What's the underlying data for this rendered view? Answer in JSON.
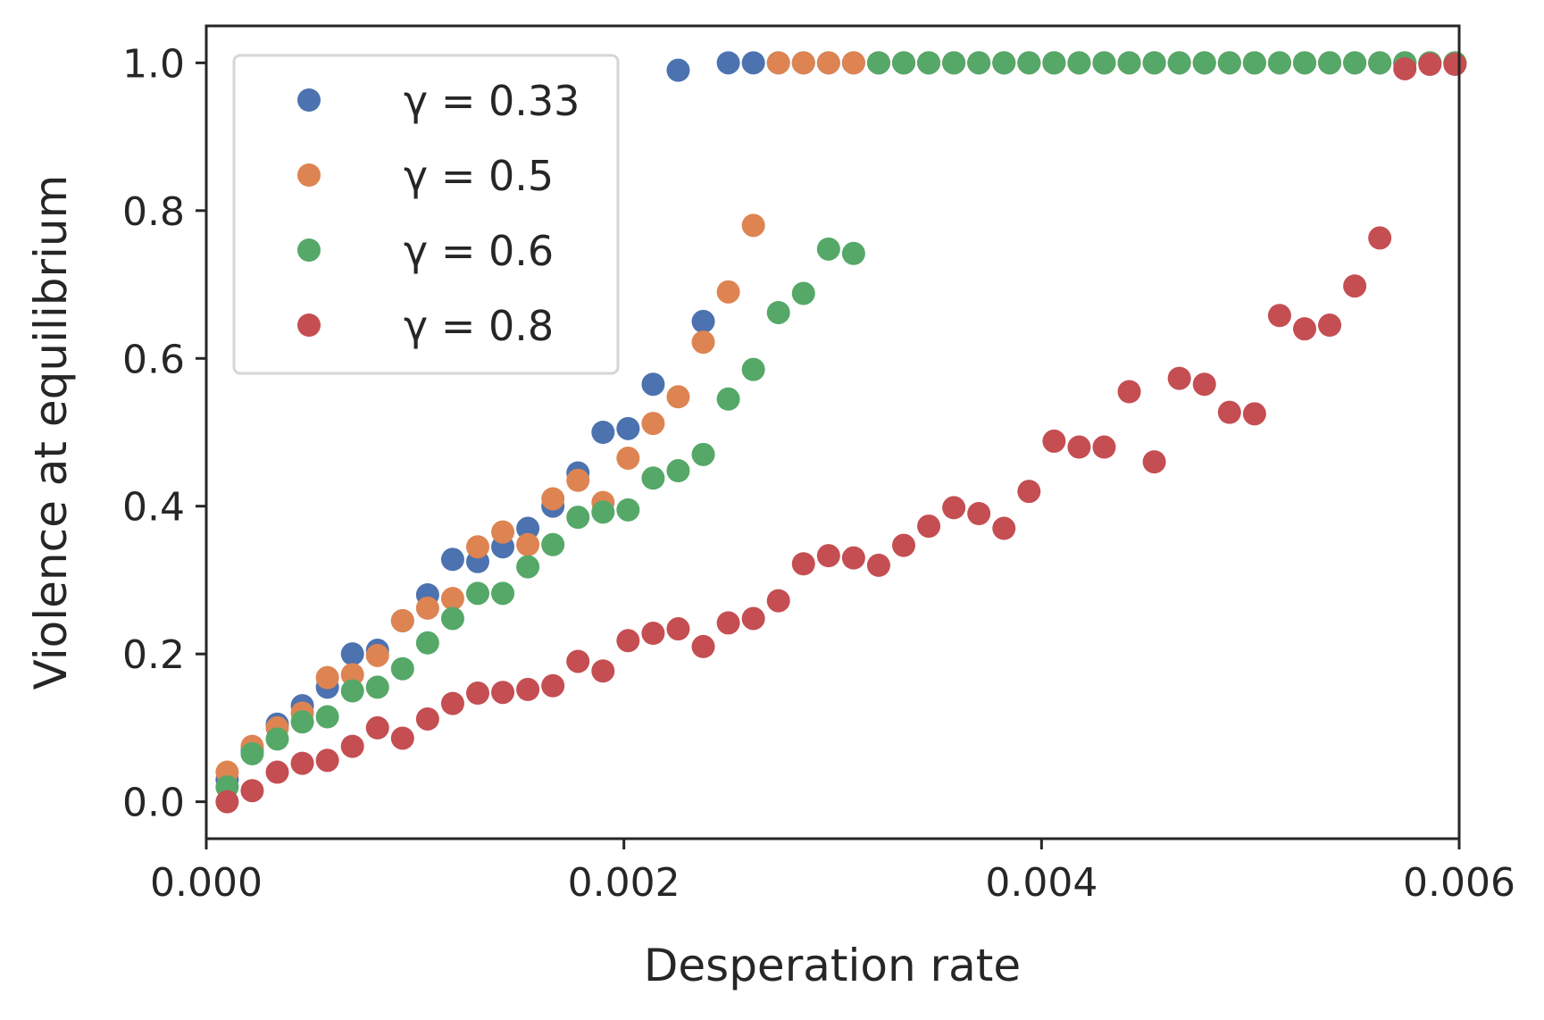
{
  "chart_data": {
    "type": "scatter",
    "title": "",
    "xlabel": "Desperation rate",
    "ylabel": "Violence at equilibrium",
    "xlim": [
      0.0,
      0.006
    ],
    "ylim": [
      -0.05,
      1.05
    ],
    "x_ticks": [
      0.0,
      0.002,
      0.004,
      0.006
    ],
    "x_tick_labels": [
      "0.000",
      "0.002",
      "0.004",
      "0.006"
    ],
    "y_ticks": [
      0.0,
      0.2,
      0.4,
      0.6,
      0.8,
      1.0
    ],
    "y_tick_labels": [
      "0.0",
      "0.2",
      "0.4",
      "0.6",
      "0.8",
      "1.0"
    ],
    "grid": false,
    "legend_position": "top-left",
    "x": [
      0.0001,
      0.00022,
      0.00034,
      0.00046,
      0.00058,
      0.0007,
      0.00082,
      0.00094,
      0.00106,
      0.00118,
      0.0013,
      0.00142,
      0.00154,
      0.00166,
      0.00178,
      0.0019,
      0.00202,
      0.00214,
      0.00226,
      0.00238,
      0.0025,
      0.00262,
      0.00274,
      0.00286,
      0.00298,
      0.0031,
      0.00322,
      0.00334,
      0.00346,
      0.00358,
      0.0037,
      0.00382,
      0.00394,
      0.00406,
      0.00418,
      0.0043,
      0.00442,
      0.00454,
      0.00466,
      0.00478,
      0.0049,
      0.00502,
      0.00514,
      0.00526,
      0.00538,
      0.0055,
      0.00562,
      0.00574,
      0.00586,
      0.00598
    ],
    "series": [
      {
        "name": "γ = 0.33",
        "color": "#4c72b0",
        "values": [
          0.03,
          0.07,
          0.105,
          0.13,
          0.155,
          0.2,
          0.205,
          0.245,
          0.28,
          0.328,
          0.325,
          0.345,
          0.37,
          0.4,
          0.445,
          0.5,
          0.505,
          0.565,
          0.99,
          0.65,
          1.0,
          1.0,
          1.0,
          1.0,
          1.0,
          1.0,
          1.0,
          1.0,
          1.0,
          1.0,
          1.0,
          1.0,
          1.0,
          1.0,
          1.0,
          1.0,
          1.0,
          1.0,
          1.0,
          1.0,
          1.0,
          1.0,
          1.0,
          1.0,
          1.0,
          1.0,
          1.0,
          1.0,
          1.0,
          1.0
        ]
      },
      {
        "name": "γ = 0.5",
        "color": "#dd8452",
        "values": [
          0.04,
          0.075,
          0.1,
          0.12,
          0.168,
          0.172,
          0.198,
          0.245,
          0.262,
          0.275,
          0.345,
          0.365,
          0.348,
          0.41,
          0.435,
          0.405,
          0.465,
          0.512,
          0.548,
          0.622,
          0.69,
          0.78,
          1.0,
          1.0,
          1.0,
          1.0,
          1.0,
          1.0,
          1.0,
          1.0,
          1.0,
          1.0,
          1.0,
          1.0,
          1.0,
          1.0,
          1.0,
          1.0,
          1.0,
          1.0,
          1.0,
          1.0,
          1.0,
          1.0,
          1.0,
          1.0,
          1.0,
          1.0,
          1.0,
          1.0
        ]
      },
      {
        "name": "γ = 0.6",
        "color": "#55a868",
        "values": [
          0.02,
          0.065,
          0.085,
          0.108,
          0.115,
          0.15,
          0.155,
          0.18,
          0.215,
          0.248,
          0.282,
          0.282,
          0.318,
          0.348,
          0.385,
          0.392,
          0.395,
          0.438,
          0.448,
          0.47,
          0.545,
          0.585,
          0.662,
          0.688,
          0.748,
          0.742,
          1.0,
          1.0,
          1.0,
          1.0,
          1.0,
          1.0,
          1.0,
          1.0,
          1.0,
          1.0,
          1.0,
          1.0,
          1.0,
          1.0,
          1.0,
          1.0,
          1.0,
          1.0,
          1.0,
          1.0,
          1.0,
          1.0,
          1.0,
          1.0
        ]
      },
      {
        "name": "γ = 0.8",
        "color": "#c44e52",
        "values": [
          0.0,
          0.015,
          0.04,
          0.052,
          0.056,
          0.075,
          0.1,
          0.086,
          0.112,
          0.133,
          0.147,
          0.148,
          0.152,
          0.157,
          0.19,
          0.177,
          0.218,
          0.228,
          0.234,
          0.21,
          0.242,
          0.248,
          0.272,
          0.322,
          0.333,
          0.33,
          0.32,
          0.347,
          0.373,
          0.398,
          0.39,
          0.37,
          0.42,
          0.488,
          0.48,
          0.48,
          0.555,
          0.46,
          0.573,
          0.565,
          0.527,
          0.525,
          0.658,
          0.64,
          0.645,
          0.698,
          0.763,
          0.992,
          0.998,
          0.998
        ]
      }
    ]
  }
}
